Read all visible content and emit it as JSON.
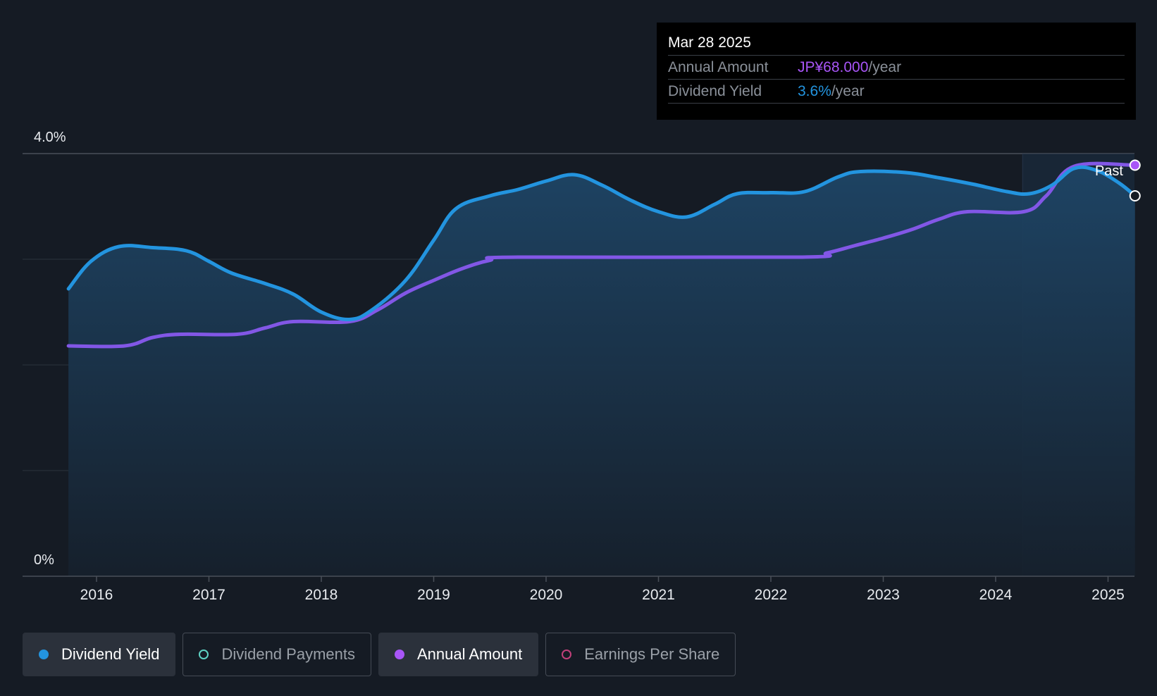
{
  "chart_data": {
    "type": "line",
    "x_ticks": [
      "2016",
      "2017",
      "2018",
      "2019",
      "2020",
      "2021",
      "2022",
      "2023",
      "2024",
      "2025"
    ],
    "y_axis": {
      "top_label": "4.0%",
      "bottom_label": "0%",
      "ylim": [
        0,
        4.0
      ]
    },
    "past_label": "Past",
    "series": [
      {
        "name": "Dividend Yield",
        "color": "#2394df",
        "filled": true,
        "points": [
          [
            2015.75,
            2.72
          ],
          [
            2015.95,
            2.98
          ],
          [
            2016.2,
            3.12
          ],
          [
            2016.5,
            3.11
          ],
          [
            2016.8,
            3.08
          ],
          [
            2017.0,
            2.98
          ],
          [
            2017.2,
            2.87
          ],
          [
            2017.5,
            2.77
          ],
          [
            2017.75,
            2.67
          ],
          [
            2018.0,
            2.5
          ],
          [
            2018.25,
            2.43
          ],
          [
            2018.45,
            2.52
          ],
          [
            2018.75,
            2.8
          ],
          [
            2019.0,
            3.18
          ],
          [
            2019.2,
            3.48
          ],
          [
            2019.5,
            3.6
          ],
          [
            2019.75,
            3.66
          ],
          [
            2020.0,
            3.74
          ],
          [
            2020.25,
            3.8
          ],
          [
            2020.5,
            3.7
          ],
          [
            2020.75,
            3.56
          ],
          [
            2021.0,
            3.45
          ],
          [
            2021.25,
            3.4
          ],
          [
            2021.5,
            3.52
          ],
          [
            2021.7,
            3.62
          ],
          [
            2022.0,
            3.63
          ],
          [
            2022.3,
            3.64
          ],
          [
            2022.6,
            3.78
          ],
          [
            2022.8,
            3.83
          ],
          [
            2023.2,
            3.82
          ],
          [
            2023.5,
            3.77
          ],
          [
            2023.8,
            3.71
          ],
          [
            2024.1,
            3.64
          ],
          [
            2024.3,
            3.62
          ],
          [
            2024.5,
            3.7
          ],
          [
            2024.7,
            3.86
          ],
          [
            2024.9,
            3.84
          ],
          [
            2025.1,
            3.72
          ],
          [
            2025.24,
            3.6
          ]
        ]
      },
      {
        "name": "Annual Amount",
        "color": "#8257e6",
        "filled": false,
        "points": [
          [
            2015.75,
            2.18
          ],
          [
            2016.25,
            2.18
          ],
          [
            2016.5,
            2.26
          ],
          [
            2016.75,
            2.29
          ],
          [
            2017.25,
            2.29
          ],
          [
            2017.5,
            2.35
          ],
          [
            2017.75,
            2.41
          ],
          [
            2018.25,
            2.41
          ],
          [
            2018.5,
            2.52
          ],
          [
            2018.75,
            2.68
          ],
          [
            2019.0,
            2.8
          ],
          [
            2019.25,
            2.91
          ],
          [
            2019.5,
            2.99
          ],
          [
            2019.75,
            3.02
          ],
          [
            2022.25,
            3.02
          ],
          [
            2022.5,
            3.06
          ],
          [
            2022.75,
            3.13
          ],
          [
            2023.0,
            3.2
          ],
          [
            2023.25,
            3.28
          ],
          [
            2023.5,
            3.38
          ],
          [
            2023.75,
            3.45
          ],
          [
            2024.25,
            3.45
          ],
          [
            2024.45,
            3.6
          ],
          [
            2024.7,
            3.88
          ],
          [
            2025.24,
            3.89
          ]
        ]
      }
    ],
    "tooltip": {
      "date": "Mar 28 2025",
      "rows": [
        {
          "label": "Annual Amount",
          "value": "JP¥68.000",
          "unit": "/year",
          "color": "#a855f7"
        },
        {
          "label": "Dividend Yield",
          "value": "3.6%",
          "unit": "/year",
          "color": "#2394df"
        }
      ]
    }
  },
  "legend": [
    {
      "label": "Dividend Yield",
      "color": "#2394df",
      "active": true,
      "filled": true
    },
    {
      "label": "Dividend Payments",
      "color": "#5fd3c4",
      "active": false,
      "filled": false
    },
    {
      "label": "Annual Amount",
      "color": "#a855f7",
      "active": true,
      "filled": true
    },
    {
      "label": "Earnings Per Share",
      "color": "#c2407a",
      "active": false,
      "filled": false
    }
  ]
}
